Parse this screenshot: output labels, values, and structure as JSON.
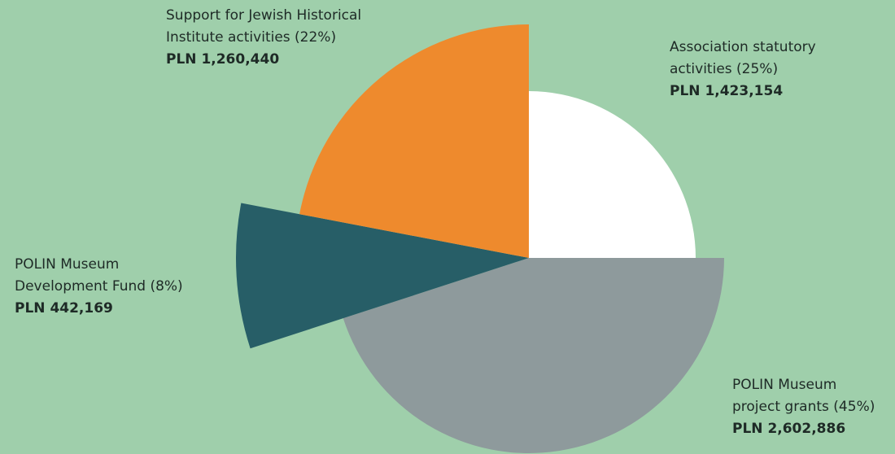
{
  "chart_data": {
    "type": "pie",
    "title": "",
    "slices": [
      {
        "label_lines": [
          "Association statutory",
          "activities (25%)"
        ],
        "value_text": "PLN 1,423,154",
        "value": 1423154,
        "percent": 25,
        "color": "#ffffff"
      },
      {
        "label_lines": [
          "POLIN Museum",
          "project grants (45%)"
        ],
        "value_text": "PLN 2,602,886",
        "value": 2602886,
        "percent": 45,
        "color": "#8e9a9c"
      },
      {
        "label_lines": [
          "POLIN Museum",
          "Development Fund (8%)"
        ],
        "value_text": "PLN 442,169",
        "value": 442169,
        "percent": 8,
        "color": "#275e67"
      },
      {
        "label_lines": [
          "Support for Jewish Historical",
          "Institute activities (22%)"
        ],
        "value_text": "PLN 1,260,440",
        "value": 1260440,
        "percent": 22,
        "color": "#ee8a2d"
      }
    ],
    "background_color": "#9fcfab"
  }
}
